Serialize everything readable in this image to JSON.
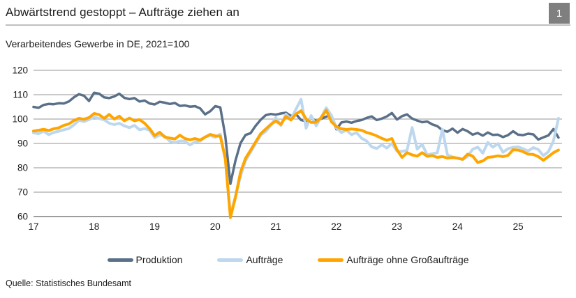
{
  "header": {
    "title": "Abwärtstrend gestoppt – Aufträge ziehen an",
    "page_number": "1"
  },
  "subtitle": "Verarbeitendes Gewerbe in DE, 2021=100",
  "source": "Quelle: Statistisches Bundesamt",
  "colors": {
    "produktion": "#5a7088",
    "auftraege": "#bdd7ee",
    "auftraege_ohne_grossauftraege": "#ffa500",
    "grid": "#ababab",
    "axis_bottom": "#9d9d9d",
    "badge_bg": "#7f7f7f",
    "title_rule": "#bfbfbf",
    "text": "#1a1a1a"
  },
  "chart_data": {
    "type": "line",
    "title": "Abwärtstrend gestoppt – Aufträge ziehen an",
    "subtitle": "Verarbeitendes Gewerbe in DE, 2021=100",
    "x_start": "2017-01",
    "x_frequency": "monthly",
    "x_tick_labels": [
      "17",
      "18",
      "19",
      "20",
      "21",
      "22",
      "23",
      "24",
      "25"
    ],
    "months_per_tick": 12,
    "ylim": [
      60,
      120
    ],
    "yticks": [
      60,
      70,
      80,
      90,
      100,
      110,
      120
    ],
    "grid": "horizontal",
    "legend_position": "bottom",
    "series": [
      {
        "name": "Produktion",
        "color": "#5a7088",
        "stroke_width": 3.5,
        "values": [
          105.0,
          104.6,
          105.8,
          106.2,
          106.1,
          106.5,
          106.4,
          107.2,
          108.9,
          110.2,
          109.6,
          107.4,
          110.8,
          110.4,
          108.9,
          108.6,
          109.3,
          110.4,
          108.7,
          108.2,
          108.6,
          107.2,
          107.6,
          106.4,
          106.0,
          107.1,
          106.7,
          106.2,
          106.6,
          105.4,
          105.6,
          105.1,
          105.3,
          104.4,
          101.9,
          103.2,
          105.3,
          104.8,
          93.0,
          73.4,
          82.9,
          90.1,
          93.5,
          94.2,
          97.2,
          99.7,
          101.6,
          102.1,
          101.8,
          102.3,
          102.6,
          101.3,
          102.0,
          99.6,
          99.1,
          100.4,
          99.2,
          100.1,
          101.0,
          101.6,
          95.8,
          98.6,
          99.0,
          98.5,
          99.2,
          99.6,
          100.5,
          101.1,
          99.6,
          100.2,
          101.1,
          102.5,
          99.8,
          101.2,
          101.9,
          100.2,
          99.4,
          98.7,
          99.0,
          97.8,
          97.1,
          95.4,
          94.8,
          96.1,
          94.4,
          95.9,
          95.0,
          93.6,
          94.3,
          93.2,
          94.5,
          93.5,
          93.6,
          92.6,
          93.4,
          95.0,
          93.6,
          93.4,
          94.0,
          93.7,
          91.6,
          92.5,
          93.3,
          95.9,
          92.4
        ]
      },
      {
        "name": "Aufträge",
        "color": "#bdd7ee",
        "stroke_width": 4,
        "values": [
          94.4,
          94.0,
          95.0,
          93.6,
          94.5,
          95.0,
          95.6,
          96.1,
          97.6,
          99.5,
          99.0,
          99.8,
          100.8,
          100.2,
          99.7,
          98.3,
          97.7,
          98.3,
          97.2,
          96.5,
          97.4,
          95.6,
          96.1,
          95.4,
          92.4,
          93.5,
          93.0,
          90.9,
          90.3,
          91.0,
          90.9,
          89.4,
          90.6,
          91.0,
          92.6,
          93.3,
          92.5,
          93.8,
          83.5,
          60.8,
          68.3,
          76.5,
          82.9,
          86.4,
          89.9,
          93.4,
          94.9,
          97.4,
          100.6,
          97.4,
          102.0,
          100.0,
          104.1,
          108.1,
          96.3,
          101.4,
          97.2,
          100.8,
          104.6,
          101.5,
          96.4,
          94.5,
          95.4,
          93.6,
          94.4,
          92.1,
          91.0,
          88.6,
          87.9,
          89.5,
          88.1,
          90.0,
          86.8,
          86.7,
          87.2,
          96.5,
          87.7,
          89.6,
          85.3,
          85.8,
          86.2,
          95.8,
          85.3,
          84.5,
          83.9,
          83.4,
          84.6,
          87.6,
          88.5,
          86.0,
          90.4,
          88.5,
          89.9,
          86.4,
          87.8,
          88.4,
          88.6,
          87.8,
          86.9,
          88.3,
          87.5,
          85.0,
          86.6,
          91.0,
          100.3
        ]
      },
      {
        "name": "Aufträge ohne Großaufträge",
        "color": "#ffa500",
        "stroke_width": 4,
        "values": [
          95.1,
          95.4,
          95.8,
          95.3,
          96.0,
          96.4,
          97.4,
          98.0,
          99.4,
          100.3,
          99.9,
          100.6,
          102.3,
          101.8,
          100.3,
          101.9,
          100.0,
          101.2,
          99.3,
          100.4,
          99.3,
          99.8,
          98.3,
          96.1,
          93.2,
          94.6,
          92.6,
          92.2,
          91.8,
          93.4,
          92.0,
          91.5,
          92.0,
          91.4,
          92.6,
          93.7,
          93.1,
          93.0,
          83.8,
          59.6,
          67.8,
          78.1,
          83.9,
          87.2,
          90.6,
          94.0,
          95.9,
          97.8,
          99.2,
          97.8,
          101.1,
          99.6,
          102.1,
          103.4,
          100.1,
          98.6,
          98.7,
          100.6,
          103.6,
          98.9,
          96.9,
          96.0,
          95.7,
          95.9,
          95.7,
          95.4,
          94.5,
          93.9,
          93.1,
          92.1,
          91.3,
          92.0,
          87.4,
          84.3,
          86.2,
          85.3,
          84.8,
          86.2,
          84.7,
          85.0,
          84.3,
          84.6,
          84.0,
          84.2,
          84.0,
          83.5,
          85.6,
          84.8,
          82.2,
          82.8,
          84.3,
          84.5,
          84.9,
          84.6,
          85.1,
          87.4,
          87.3,
          86.6,
          85.6,
          85.5,
          84.6,
          83.1,
          84.6,
          86.2,
          87.3
        ]
      }
    ]
  }
}
